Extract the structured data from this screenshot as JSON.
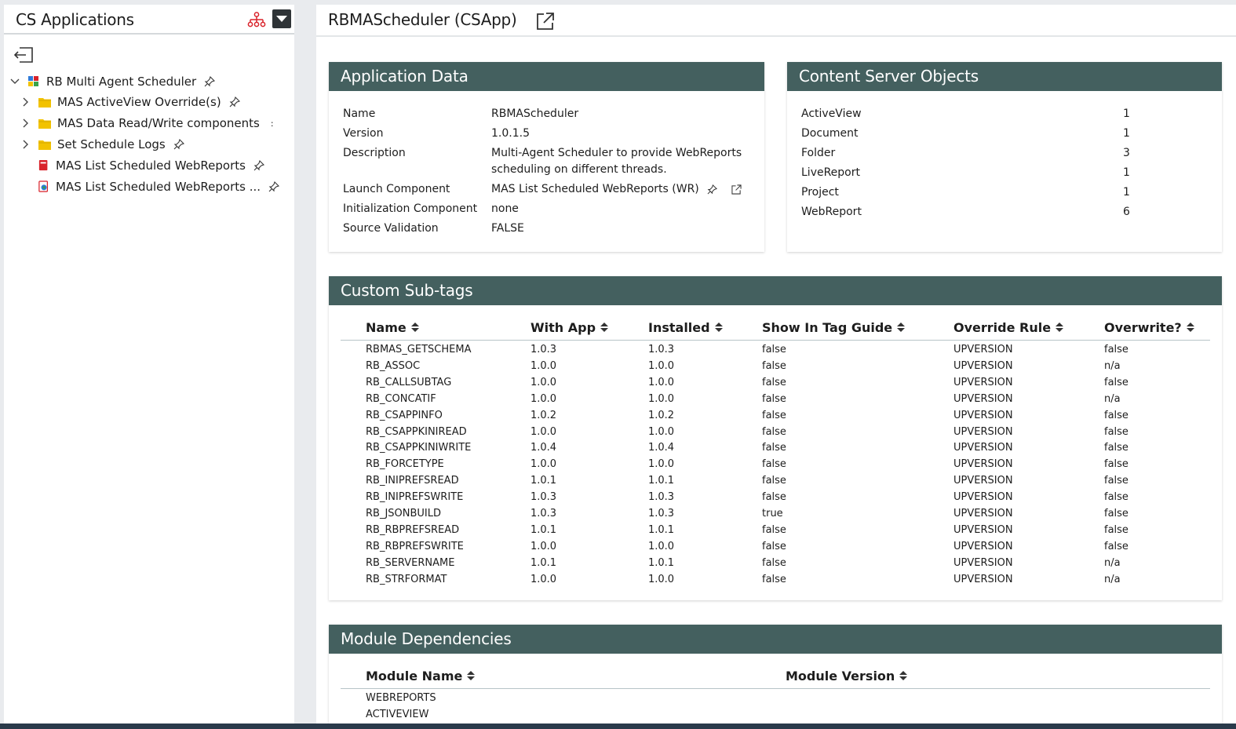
{
  "sidebar": {
    "title": "CS Applications",
    "root": "RB Multi Agent Scheduler",
    "items": [
      {
        "label": "MAS ActiveView Override(s)"
      },
      {
        "label": "MAS Data Read/Write components"
      },
      {
        "label": "Set Schedule Logs"
      },
      {
        "label": "MAS List Scheduled WebReports"
      },
      {
        "label": "MAS List Scheduled WebReports ..."
      }
    ],
    "overflow_mark": ":"
  },
  "header": {
    "title": "RBMAScheduler (CSApp)"
  },
  "app_data": {
    "title": "Application Data",
    "rows": [
      {
        "label": "Name",
        "value": "RBMAScheduler"
      },
      {
        "label": "Version",
        "value": "1.0.1.5"
      },
      {
        "label": "Description",
        "value": "Multi-Agent Scheduler to provide WebReports",
        "value2": "scheduling on different threads."
      },
      {
        "label": "Launch Component",
        "value": "MAS List Scheduled WebReports (WR)"
      },
      {
        "label": "Initialization Component",
        "value": "none"
      },
      {
        "label": "Source Validation",
        "value": "FALSE"
      }
    ]
  },
  "cs_objects": {
    "title": "Content Server Objects",
    "rows": [
      {
        "label": "ActiveView",
        "value": "1"
      },
      {
        "label": "Document",
        "value": "1"
      },
      {
        "label": "Folder",
        "value": "3"
      },
      {
        "label": "LiveReport",
        "value": "1"
      },
      {
        "label": "Project",
        "value": "1"
      },
      {
        "label": "WebReport",
        "value": "6"
      }
    ]
  },
  "subtags": {
    "title": "Custom Sub-tags",
    "columns": [
      "Name",
      "With App",
      "Installed",
      "Show In Tag Guide",
      "Override Rule",
      "Overwrite?"
    ],
    "rows": [
      [
        "RBMAS_GETSCHEMA",
        "1.0.3",
        "1.0.3",
        "false",
        "UPVERSION",
        "false"
      ],
      [
        "RB_ASSOC",
        "1.0.0",
        "1.0.0",
        "false",
        "UPVERSION",
        "n/a"
      ],
      [
        "RB_CALLSUBTAG",
        "1.0.0",
        "1.0.0",
        "false",
        "UPVERSION",
        "false"
      ],
      [
        "RB_CONCATIF",
        "1.0.0",
        "1.0.0",
        "false",
        "UPVERSION",
        "n/a"
      ],
      [
        "RB_CSAPPINFO",
        "1.0.2",
        "1.0.2",
        "false",
        "UPVERSION",
        "false"
      ],
      [
        "RB_CSAPPKINIREAD",
        "1.0.0",
        "1.0.0",
        "false",
        "UPVERSION",
        "false"
      ],
      [
        "RB_CSAPPKINIWRITE",
        "1.0.4",
        "1.0.4",
        "false",
        "UPVERSION",
        "false"
      ],
      [
        "RB_FORCETYPE",
        "1.0.0",
        "1.0.0",
        "false",
        "UPVERSION",
        "false"
      ],
      [
        "RB_INIPREFSREAD",
        "1.0.1",
        "1.0.1",
        "false",
        "UPVERSION",
        "false"
      ],
      [
        "RB_INIPREFSWRITE",
        "1.0.3",
        "1.0.3",
        "false",
        "UPVERSION",
        "false"
      ],
      [
        "RB_JSONBUILD",
        "1.0.3",
        "1.0.3",
        "true",
        "UPVERSION",
        "false"
      ],
      [
        "RB_RBPREFSREAD",
        "1.0.1",
        "1.0.1",
        "false",
        "UPVERSION",
        "false"
      ],
      [
        "RB_RBPREFSWRITE",
        "1.0.0",
        "1.0.0",
        "false",
        "UPVERSION",
        "false"
      ],
      [
        "RB_SERVERNAME",
        "1.0.1",
        "1.0.1",
        "false",
        "UPVERSION",
        "n/a"
      ],
      [
        "RB_STRFORMAT",
        "1.0.0",
        "1.0.0",
        "false",
        "UPVERSION",
        "n/a"
      ]
    ]
  },
  "modules": {
    "title": "Module Dependencies",
    "columns": [
      "Module Name",
      "Module Version"
    ],
    "rows": [
      [
        "WEBREPORTS",
        ""
      ],
      [
        "ACTIVEVIEW",
        ""
      ]
    ]
  },
  "colors": {
    "card_header": "#44605f",
    "accent_red": "#d9222a",
    "folder_yellow": "#f2c200"
  }
}
